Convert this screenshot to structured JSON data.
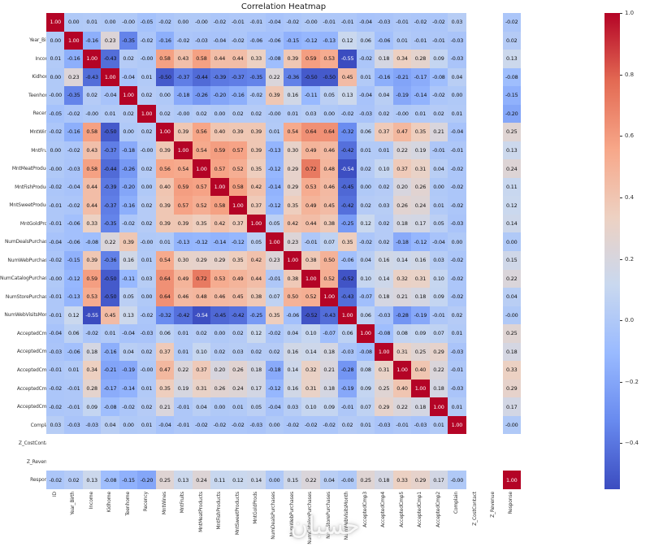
{
  "title": "Correlation Heatmap",
  "watermark": "حسبان",
  "chart_data": {
    "type": "heatmap",
    "title": "Correlation Heatmap",
    "colormap": "coolwarm",
    "colormap_stops": [
      "#3b4cc0",
      "#688aef",
      "#99baff",
      "#c9d8ef",
      "#edd1c2",
      "#f7a789",
      "#e36a53",
      "#b40426"
    ],
    "vmin": -0.55,
    "vmax": 1.0,
    "annotation_format": ".2f",
    "colorbar_ticks": [
      1.0,
      0.8,
      0.6,
      0.4,
      0.2,
      0.0,
      -0.2,
      -0.4
    ],
    "labels": [
      "ID",
      "Year_Birth",
      "Income",
      "Kidhome",
      "Teenhome",
      "Recency",
      "MntWines",
      "MntFruits",
      "MntMeatProducts",
      "MntFishProducts",
      "MntSweetProducts",
      "MntGoldProds",
      "NumDealsPurchases",
      "NumWebPurchases",
      "NumCatalogPurchases",
      "NumStorePurchases",
      "NumWebVisitsMonth",
      "AcceptedCmp3",
      "AcceptedCmp4",
      "AcceptedCmp5",
      "AcceptedCmp1",
      "AcceptedCmp2",
      "Complain",
      "Z_CostContact",
      "Z_Revenue",
      "Response"
    ],
    "matrix": [
      [
        1.0,
        0.0,
        0.01,
        0.0,
        -0.0,
        -0.05,
        -0.02,
        0.0,
        -0.0,
        -0.02,
        -0.01,
        -0.01,
        -0.04,
        -0.02,
        -0.0,
        -0.01,
        -0.01,
        -0.04,
        -0.03,
        -0.01,
        -0.02,
        -0.02,
        0.03,
        null,
        null,
        -0.02
      ],
      [
        0.0,
        1.0,
        -0.16,
        0.23,
        -0.35,
        -0.02,
        -0.16,
        -0.02,
        -0.03,
        -0.04,
        -0.02,
        -0.06,
        -0.06,
        -0.15,
        -0.12,
        -0.13,
        0.12,
        0.06,
        -0.06,
        0.01,
        -0.01,
        -0.01,
        -0.03,
        null,
        null,
        0.02
      ],
      [
        0.01,
        -0.16,
        1.0,
        -0.43,
        0.02,
        -0.0,
        0.58,
        0.43,
        0.58,
        0.44,
        0.44,
        0.33,
        -0.08,
        0.39,
        0.59,
        0.53,
        -0.55,
        -0.02,
        0.18,
        0.34,
        0.28,
        0.09,
        -0.03,
        null,
        null,
        0.13
      ],
      [
        0.0,
        0.23,
        -0.43,
        1.0,
        -0.04,
        0.01,
        -0.5,
        -0.37,
        -0.44,
        -0.39,
        -0.37,
        -0.35,
        0.22,
        -0.36,
        -0.5,
        -0.5,
        0.45,
        0.01,
        -0.16,
        -0.21,
        -0.17,
        -0.08,
        0.04,
        null,
        null,
        -0.08
      ],
      [
        -0.0,
        -0.35,
        0.02,
        -0.04,
        1.0,
        0.02,
        0.0,
        -0.18,
        -0.26,
        -0.2,
        -0.16,
        -0.02,
        0.39,
        0.16,
        -0.11,
        0.05,
        0.13,
        -0.04,
        0.04,
        -0.19,
        -0.14,
        -0.02,
        0.0,
        null,
        null,
        -0.15
      ],
      [
        -0.05,
        -0.02,
        -0.0,
        0.01,
        0.02,
        1.0,
        0.02,
        -0.0,
        0.02,
        0.0,
        0.02,
        0.02,
        -0.0,
        0.01,
        0.03,
        0.0,
        -0.02,
        -0.03,
        0.02,
        -0.0,
        0.01,
        0.02,
        0.01,
        null,
        null,
        -0.2
      ],
      [
        -0.02,
        -0.16,
        0.58,
        -0.5,
        0.0,
        0.02,
        1.0,
        0.39,
        0.56,
        0.4,
        0.39,
        0.39,
        0.01,
        0.54,
        0.64,
        0.64,
        -0.32,
        0.06,
        0.37,
        0.47,
        0.35,
        0.21,
        -0.04,
        null,
        null,
        0.25
      ],
      [
        0.0,
        -0.02,
        0.43,
        -0.37,
        -0.18,
        -0.0,
        0.39,
        1.0,
        0.54,
        0.59,
        0.57,
        0.39,
        -0.13,
        0.3,
        0.49,
        0.46,
        -0.42,
        0.01,
        0.01,
        0.22,
        0.19,
        -0.01,
        -0.01,
        null,
        null,
        0.13
      ],
      [
        -0.0,
        -0.03,
        0.58,
        -0.44,
        -0.26,
        0.02,
        0.56,
        0.54,
        1.0,
        0.57,
        0.52,
        0.35,
        -0.12,
        0.29,
        0.72,
        0.48,
        -0.54,
        0.02,
        0.1,
        0.37,
        0.31,
        0.04,
        -0.02,
        null,
        null,
        0.24
      ],
      [
        -0.02,
        -0.04,
        0.44,
        -0.39,
        -0.2,
        0.0,
        0.4,
        0.59,
        0.57,
        1.0,
        0.58,
        0.42,
        -0.14,
        0.29,
        0.53,
        0.46,
        -0.45,
        0.0,
        0.02,
        0.2,
        0.26,
        0.0,
        -0.02,
        null,
        null,
        0.11
      ],
      [
        -0.01,
        -0.02,
        0.44,
        -0.37,
        -0.16,
        0.02,
        0.39,
        0.57,
        0.52,
        0.58,
        1.0,
        0.37,
        -0.12,
        0.35,
        0.49,
        0.45,
        -0.42,
        0.02,
        0.03,
        0.26,
        0.24,
        0.01,
        -0.02,
        null,
        null,
        0.12
      ],
      [
        -0.01,
        -0.06,
        0.33,
        -0.35,
        -0.02,
        0.02,
        0.39,
        0.39,
        0.35,
        0.42,
        0.37,
        1.0,
        0.05,
        0.42,
        0.44,
        0.38,
        -0.25,
        0.12,
        0.02,
        0.18,
        0.17,
        0.05,
        -0.03,
        null,
        null,
        0.14
      ],
      [
        -0.04,
        -0.06,
        -0.08,
        0.22,
        0.39,
        -0.0,
        0.01,
        -0.13,
        -0.12,
        -0.14,
        -0.12,
        0.05,
        1.0,
        0.23,
        -0.01,
        0.07,
        0.35,
        -0.02,
        0.02,
        -0.18,
        -0.12,
        -0.04,
        0.0,
        null,
        null,
        0.0
      ],
      [
        -0.02,
        -0.15,
        0.39,
        -0.36,
        0.16,
        0.01,
        0.54,
        0.3,
        0.29,
        0.29,
        0.35,
        0.42,
        0.23,
        1.0,
        0.38,
        0.5,
        -0.06,
        0.04,
        0.16,
        0.14,
        0.16,
        0.03,
        -0.02,
        null,
        null,
        0.15
      ],
      [
        -0.0,
        -0.12,
        0.59,
        -0.5,
        -0.11,
        0.03,
        0.64,
        0.49,
        0.72,
        0.53,
        0.49,
        0.44,
        -0.01,
        0.38,
        1.0,
        0.52,
        -0.52,
        0.1,
        0.14,
        0.32,
        0.31,
        0.1,
        -0.02,
        null,
        null,
        0.22
      ],
      [
        -0.01,
        -0.13,
        0.53,
        -0.5,
        0.05,
        0.0,
        0.64,
        0.46,
        0.48,
        0.46,
        0.45,
        0.38,
        0.07,
        0.5,
        0.52,
        1.0,
        -0.43,
        -0.07,
        0.18,
        0.21,
        0.18,
        0.09,
        -0.02,
        null,
        null,
        0.04
      ],
      [
        -0.01,
        0.12,
        -0.55,
        0.45,
        0.13,
        -0.02,
        -0.32,
        -0.42,
        -0.54,
        -0.45,
        -0.42,
        -0.25,
        0.35,
        -0.06,
        -0.52,
        -0.43,
        1.0,
        0.06,
        -0.03,
        -0.28,
        -0.19,
        -0.01,
        0.02,
        null,
        null,
        -0.0
      ],
      [
        -0.04,
        0.06,
        -0.02,
        0.01,
        -0.04,
        -0.03,
        0.06,
        0.01,
        0.02,
        0.0,
        0.02,
        0.12,
        -0.02,
        0.04,
        0.1,
        -0.07,
        0.06,
        1.0,
        -0.08,
        0.08,
        0.09,
        0.07,
        0.01,
        null,
        null,
        0.25
      ],
      [
        -0.03,
        -0.06,
        0.18,
        -0.16,
        0.04,
        0.02,
        0.37,
        0.01,
        0.1,
        0.02,
        0.03,
        0.02,
        0.02,
        0.16,
        0.14,
        0.18,
        -0.03,
        -0.08,
        1.0,
        0.31,
        0.25,
        0.29,
        -0.03,
        null,
        null,
        0.18
      ],
      [
        -0.01,
        0.01,
        0.34,
        -0.21,
        -0.19,
        -0.0,
        0.47,
        0.22,
        0.37,
        0.2,
        0.26,
        0.18,
        -0.18,
        0.14,
        0.32,
        0.21,
        -0.28,
        0.08,
        0.31,
        1.0,
        0.4,
        0.22,
        -0.01,
        null,
        null,
        0.33
      ],
      [
        -0.02,
        -0.01,
        0.28,
        -0.17,
        -0.14,
        0.01,
        0.35,
        0.19,
        0.31,
        0.26,
        0.24,
        0.17,
        -0.12,
        0.16,
        0.31,
        0.18,
        -0.19,
        0.09,
        0.25,
        0.4,
        1.0,
        0.18,
        -0.03,
        null,
        null,
        0.29
      ],
      [
        -0.02,
        -0.01,
        0.09,
        -0.08,
        -0.02,
        0.02,
        0.21,
        -0.01,
        0.04,
        0.0,
        0.01,
        0.05,
        -0.04,
        0.03,
        0.1,
        0.09,
        -0.01,
        0.07,
        0.29,
        0.22,
        0.18,
        1.0,
        0.01,
        null,
        null,
        0.17
      ],
      [
        0.03,
        -0.03,
        -0.03,
        0.04,
        0.0,
        0.01,
        -0.04,
        -0.01,
        -0.02,
        -0.02,
        -0.02,
        -0.03,
        0.0,
        -0.02,
        -0.02,
        -0.02,
        0.02,
        0.01,
        -0.03,
        -0.01,
        -0.03,
        0.01,
        1.0,
        null,
        null,
        -0.0
      ],
      [
        null,
        null,
        null,
        null,
        null,
        null,
        null,
        null,
        null,
        null,
        null,
        null,
        null,
        null,
        null,
        null,
        null,
        null,
        null,
        null,
        null,
        null,
        null,
        null,
        null,
        null
      ],
      [
        null,
        null,
        null,
        null,
        null,
        null,
        null,
        null,
        null,
        null,
        null,
        null,
        null,
        null,
        null,
        null,
        null,
        null,
        null,
        null,
        null,
        null,
        null,
        null,
        null,
        null
      ],
      [
        -0.02,
        0.02,
        0.13,
        -0.08,
        -0.15,
        -0.2,
        0.25,
        0.13,
        0.24,
        0.11,
        0.12,
        0.14,
        0.0,
        0.15,
        0.22,
        0.04,
        -0.0,
        0.25,
        0.18,
        0.33,
        0.29,
        0.17,
        -0.0,
        null,
        null,
        1.0
      ]
    ]
  }
}
